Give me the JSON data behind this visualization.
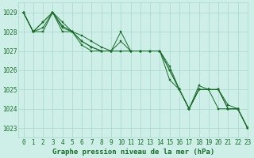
{
  "title": "Graphe pression niveau de la mer (hPa)",
  "bg_color": "#ceeee8",
  "grid_color": "#a8d8cc",
  "line_color": "#1a6b2a",
  "marker_color": "#1a6b2a",
  "xlim": [
    -0.5,
    23
  ],
  "ylim": [
    1022.5,
    1029.5
  ],
  "yticks": [
    1023,
    1024,
    1025,
    1026,
    1027,
    1028,
    1029
  ],
  "xticks": [
    0,
    1,
    2,
    3,
    4,
    5,
    6,
    7,
    8,
    9,
    10,
    11,
    12,
    13,
    14,
    15,
    16,
    17,
    18,
    19,
    20,
    21,
    22,
    23
  ],
  "series": [
    [
      1029.0,
      1028.0,
      1028.0,
      1029.0,
      1028.0,
      1028.0,
      1027.8,
      1027.5,
      1027.2,
      1027.0,
      1028.0,
      1027.0,
      1027.0,
      1027.0,
      1027.0,
      1026.0,
      1025.0,
      1024.0,
      1025.0,
      1025.0,
      1025.0,
      1024.0,
      1024.0,
      1023.0
    ],
    [
      1029.0,
      1028.0,
      1028.5,
      1029.0,
      1028.3,
      1028.0,
      1027.5,
      1027.2,
      1027.0,
      1027.0,
      1027.0,
      1027.0,
      1027.0,
      1027.0,
      1027.0,
      1026.2,
      1025.0,
      1024.0,
      1025.0,
      1025.0,
      1025.0,
      1024.0,
      1024.0,
      1023.0
    ],
    [
      1029.0,
      1028.0,
      1028.5,
      1029.0,
      1028.5,
      1028.0,
      1027.5,
      1027.2,
      1027.0,
      1027.0,
      1027.5,
      1027.0,
      1027.0,
      1027.0,
      1027.0,
      1025.5,
      1025.0,
      1024.0,
      1025.2,
      1025.0,
      1025.0,
      1024.2,
      1024.0,
      1023.0
    ],
    [
      1029.0,
      1028.0,
      1028.2,
      1029.0,
      1028.2,
      1028.0,
      1027.3,
      1027.0,
      1027.0,
      1027.0,
      1027.0,
      1027.0,
      1027.0,
      1027.0,
      1027.0,
      1026.0,
      1025.0,
      1024.0,
      1025.0,
      1025.0,
      1024.0,
      1024.0,
      1024.0,
      1023.0
    ]
  ],
  "tick_fontsize": 5.5,
  "title_fontsize": 6.5,
  "title_color": "#1a6b2a",
  "tick_color": "#1a6b2a"
}
